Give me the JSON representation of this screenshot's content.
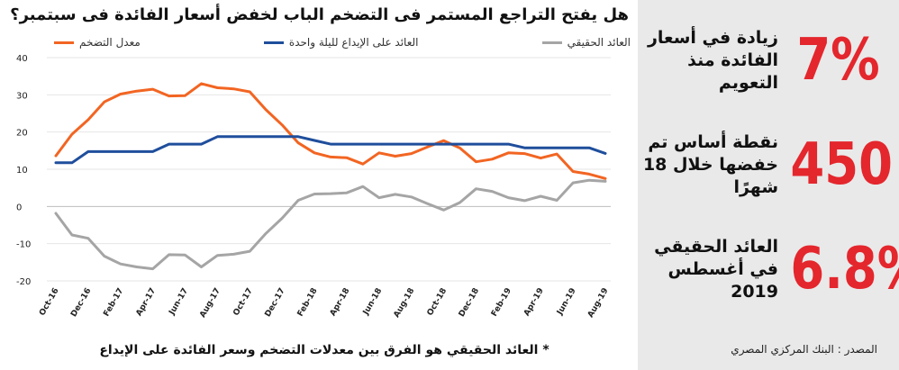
{
  "chart_data": {
    "type": "line",
    "title": "هل يفتح التراجع المستمر فى التضخم الباب لخفض أسعار الفائدة فى سبتمبر؟",
    "x_ticks": [
      "Oct-16",
      "Dec-16",
      "Feb-17",
      "Apr-17",
      "Jun-17",
      "Aug-17",
      "Oct-17",
      "Dec-17",
      "Feb-18",
      "Apr-18",
      "Jun-18",
      "Aug-18",
      "Oct-18",
      "Dec-18",
      "Feb-19",
      "Apr-19",
      "Jun-19",
      "Aug-19"
    ],
    "x": [
      "Oct-16",
      "Nov-16",
      "Dec-16",
      "Jan-17",
      "Feb-17",
      "Mar-17",
      "Apr-17",
      "May-17",
      "Jun-17",
      "Jul-17",
      "Aug-17",
      "Sep-17",
      "Oct-17",
      "Nov-17",
      "Dec-17",
      "Jan-18",
      "Feb-18",
      "Mar-18",
      "Apr-18",
      "May-18",
      "Jun-18",
      "Jul-18",
      "Aug-18",
      "Sep-18",
      "Oct-18",
      "Nov-18",
      "Dec-18",
      "Jan-19",
      "Feb-19",
      "Mar-19",
      "Apr-19",
      "May-19",
      "Jun-19",
      "Jul-19",
      "Aug-19"
    ],
    "ylim": [
      -20,
      40
    ],
    "y_ticks": [
      40,
      30,
      20,
      10,
      0,
      -10,
      -20
    ],
    "series": [
      {
        "name": "معدل التضخم",
        "color": "#f26522",
        "values": [
          13.6,
          19.4,
          23.3,
          28.1,
          30.2,
          31.0,
          31.5,
          29.7,
          29.8,
          33.0,
          31.9,
          31.6,
          30.8,
          26.0,
          21.9,
          17.1,
          14.4,
          13.3,
          13.1,
          11.4,
          14.4,
          13.5,
          14.2,
          16.0,
          17.7,
          15.7,
          12.0,
          12.7,
          14.4,
          14.2,
          13.0,
          14.1,
          9.4,
          8.7,
          7.5
        ]
      },
      {
        "name": "العائد على الإيداع لليلة واحدة",
        "color": "#1f4e9c",
        "values": [
          11.75,
          11.75,
          14.75,
          14.75,
          14.75,
          14.75,
          14.75,
          16.75,
          16.75,
          16.75,
          18.75,
          18.75,
          18.75,
          18.75,
          18.75,
          18.75,
          17.75,
          16.75,
          16.75,
          16.75,
          16.75,
          16.75,
          16.75,
          16.75,
          16.75,
          16.75,
          16.75,
          16.75,
          16.75,
          15.75,
          15.75,
          15.75,
          15.75,
          15.75,
          14.25
        ]
      },
      {
        "name": "العائد الحقيقي",
        "color": "#a5a5a5",
        "values": [
          -1.85,
          -7.65,
          -8.55,
          -13.35,
          -15.45,
          -16.25,
          -16.75,
          -12.95,
          -13.05,
          -16.25,
          -13.15,
          -12.85,
          -12.05,
          -7.25,
          -3.15,
          1.65,
          3.35,
          3.45,
          3.65,
          5.35,
          2.35,
          3.25,
          2.55,
          0.75,
          -0.95,
          1.05,
          4.75,
          4.05,
          2.35,
          1.55,
          2.75,
          1.65,
          6.35,
          7.05,
          6.75
        ]
      }
    ]
  },
  "footnote": "* العائد الحقيقي هو الفرق بين معدلات التضخم وسعر الفائدة على الإيداع",
  "stats": [
    {
      "value": "7%",
      "desc": "زيادة في أسعار الفائدة منذ التعويم"
    },
    {
      "value": "450",
      "desc": "نقطة أساس تم خفضها خلال 18 شهرًا"
    },
    {
      "value": "6.8%",
      "desc": "العائد الحقيقي في أغسطس 2019"
    }
  ],
  "source": "المصدر : البنك المركزي المصري"
}
